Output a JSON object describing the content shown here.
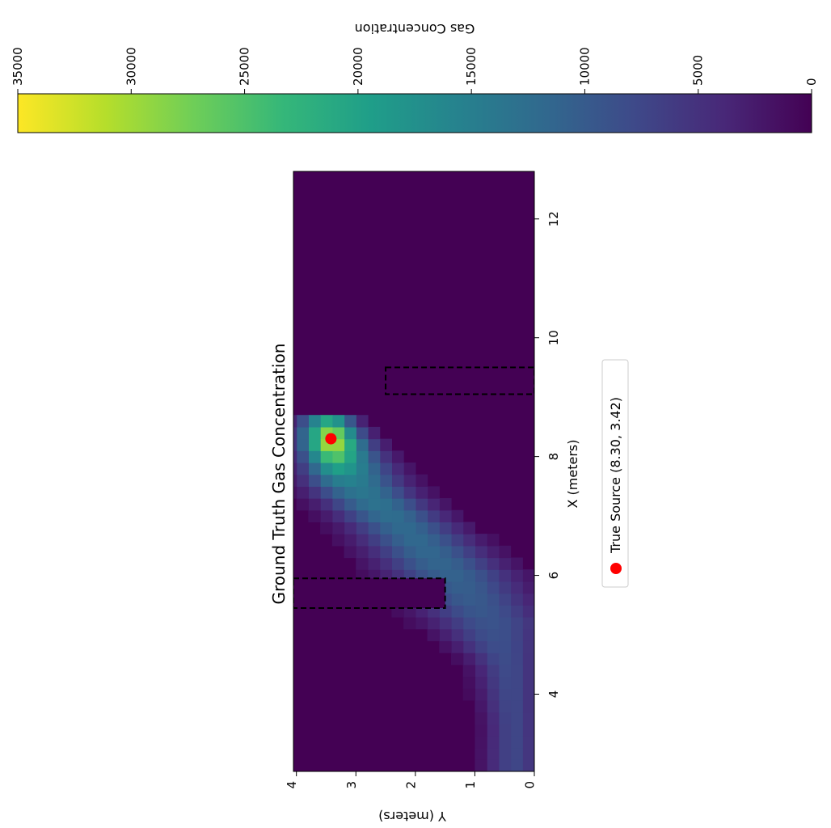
{
  "chart_data": {
    "type": "heatmap",
    "title": "Ground Truth Gas Concentration",
    "xlabel": "X (meters)",
    "ylabel": "Y (meters)",
    "xlim": [
      2.7,
      12.8
    ],
    "ylim": [
      0,
      4.05
    ],
    "x_ticks": [
      "4",
      "6",
      "8",
      "10",
      "12"
    ],
    "y_ticks": [
      "0",
      "1",
      "2",
      "3",
      "4"
    ],
    "colorbar": {
      "label": "Gas Concentration",
      "range": [
        0,
        35000
      ],
      "ticks": [
        "0",
        "5000",
        "10000",
        "15000",
        "20000",
        "25000",
        "30000",
        "35000"
      ],
      "colormap": [
        "#440154",
        "#482878",
        "#3e4989",
        "#31688e",
        "#26828e",
        "#1f9e89",
        "#35b779",
        "#6ece58",
        "#b5de2b",
        "#fde725"
      ]
    },
    "plume_centerline": [
      {
        "x": 2.7,
        "y": 0.35,
        "width": 0.7,
        "value": 7500
      },
      {
        "x": 3.5,
        "y": 0.35,
        "width": 0.65,
        "value": 7500
      },
      {
        "x": 4.5,
        "y": 0.45,
        "width": 0.8,
        "value": 8000
      },
      {
        "x": 5.2,
        "y": 0.75,
        "width": 1.4,
        "value": 9000
      },
      {
        "x": 6.0,
        "y": 1.4,
        "width": 1.5,
        "value": 11000
      },
      {
        "x": 6.8,
        "y": 2.2,
        "width": 1.3,
        "value": 12000
      },
      {
        "x": 7.5,
        "y": 3.0,
        "width": 1.2,
        "value": 14000
      },
      {
        "x": 8.3,
        "y": 3.42,
        "width": 0.9,
        "value": 20000
      },
      {
        "x": 8.8,
        "y": 3.6,
        "width": 0.6,
        "value": 8000
      }
    ],
    "obstacles": [
      {
        "x0": 5.45,
        "x1": 5.95,
        "y0": 1.5,
        "y1": 4.05
      },
      {
        "x0": 9.05,
        "x1": 9.5,
        "y0": 0,
        "y1": 2.5
      }
    ],
    "source": {
      "x": 8.3,
      "y": 3.42,
      "color": "#ff0000"
    },
    "legend": {
      "label": "True Source (8.30, 3.42)",
      "placement": "below"
    }
  }
}
